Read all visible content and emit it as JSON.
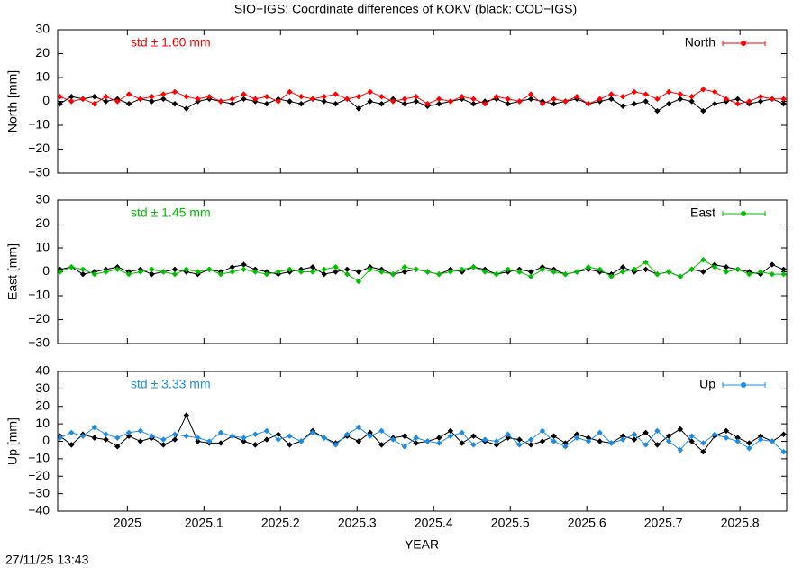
{
  "footer": "27/11/25 13:43",
  "chart_data": [
    {
      "type": "line",
      "title": "SIO−IGS: Coordinate differences of KOKV (black: COD−IGS)",
      "ylabel": "North [mm]",
      "annotation": "std ± 1.60 mm",
      "legend": "upper right",
      "xlim": [
        2024.909,
        2025.861
      ],
      "ylim": [
        -30,
        30
      ],
      "yticks": [
        {
          "value": -30,
          "label": "−30"
        },
        {
          "value": -20,
          "label": "−20"
        },
        {
          "value": -10,
          "label": "−10"
        },
        0,
        10,
        20,
        30
      ],
      "x": [
        2024.912,
        2024.927,
        2024.942,
        2024.957,
        2024.972,
        2024.987,
        2025.002,
        2025.017,
        2025.032,
        2025.047,
        2025.062,
        2025.077,
        2025.092,
        2025.107,
        2025.122,
        2025.137,
        2025.152,
        2025.167,
        2025.182,
        2025.197,
        2025.212,
        2025.227,
        2025.242,
        2025.257,
        2025.272,
        2025.287,
        2025.302,
        2025.317,
        2025.332,
        2025.347,
        2025.362,
        2025.377,
        2025.392,
        2025.407,
        2025.422,
        2025.437,
        2025.452,
        2025.467,
        2025.482,
        2025.497,
        2025.512,
        2025.527,
        2025.542,
        2025.557,
        2025.572,
        2025.587,
        2025.602,
        2025.617,
        2025.632,
        2025.647,
        2025.662,
        2025.677,
        2025.692,
        2025.707,
        2025.722,
        2025.737,
        2025.752,
        2025.767,
        2025.782,
        2025.797,
        2025.812,
        2025.827,
        2025.842,
        2025.857
      ],
      "series": [
        {
          "color": "#000000",
          "values": [
            -1,
            2,
            1,
            2,
            0,
            1,
            -1,
            1,
            0,
            1,
            -1,
            -3,
            0,
            1,
            0,
            -1,
            1,
            0,
            -1,
            1,
            0,
            -1,
            1,
            0,
            -1,
            1,
            -3,
            0,
            -1,
            1,
            -1,
            0,
            -2,
            -1,
            0,
            1,
            -1,
            0,
            1,
            -1,
            0,
            1,
            0,
            -1,
            0,
            1,
            -1,
            0,
            1,
            -2,
            -1,
            0,
            -4,
            -1,
            1,
            0,
            -4,
            -1,
            0,
            1,
            -1,
            0,
            1,
            -1
          ]
        },
        {
          "name": "North",
          "color": "#ff0000",
          "values": [
            2,
            0,
            1,
            -1,
            2,
            0,
            3,
            1,
            2,
            3,
            4,
            2,
            1,
            2,
            0,
            1,
            3,
            1,
            2,
            0,
            4,
            2,
            1,
            2,
            3,
            1,
            2,
            4,
            2,
            0,
            1,
            2,
            -1,
            1,
            0,
            2,
            1,
            -1,
            2,
            1,
            0,
            3,
            -1,
            1,
            0,
            2,
            -1,
            1,
            3,
            2,
            4,
            3,
            1,
            4,
            3,
            2,
            5,
            4,
            1,
            -1,
            0,
            2,
            1,
            1
          ]
        }
      ]
    },
    {
      "type": "line",
      "ylabel": "East [mm]",
      "annotation": "std ± 1.45 mm",
      "legend": "upper right",
      "xlim": [
        2024.909,
        2025.861
      ],
      "ylim": [
        -30,
        30
      ],
      "yticks": [
        {
          "value": -30,
          "label": "−30"
        },
        {
          "value": -20,
          "label": "−20"
        },
        {
          "value": -10,
          "label": "−10"
        },
        0,
        10,
        20,
        30
      ],
      "x": [
        2024.912,
        2024.927,
        2024.942,
        2024.957,
        2024.972,
        2024.987,
        2025.002,
        2025.017,
        2025.032,
        2025.047,
        2025.062,
        2025.077,
        2025.092,
        2025.107,
        2025.122,
        2025.137,
        2025.152,
        2025.167,
        2025.182,
        2025.197,
        2025.212,
        2025.227,
        2025.242,
        2025.257,
        2025.272,
        2025.287,
        2025.302,
        2025.317,
        2025.332,
        2025.347,
        2025.362,
        2025.377,
        2025.392,
        2025.407,
        2025.422,
        2025.437,
        2025.452,
        2025.467,
        2025.482,
        2025.497,
        2025.512,
        2025.527,
        2025.542,
        2025.557,
        2025.572,
        2025.587,
        2025.602,
        2025.617,
        2025.632,
        2025.647,
        2025.662,
        2025.677,
        2025.692,
        2025.707,
        2025.722,
        2025.737,
        2025.752,
        2025.767,
        2025.782,
        2025.797,
        2025.812,
        2025.827,
        2025.842,
        2025.857
      ],
      "series": [
        {
          "color": "#000000",
          "values": [
            1,
            2,
            -1,
            0,
            1,
            2,
            0,
            1,
            -1,
            0,
            1,
            0,
            -1,
            1,
            0,
            2,
            3,
            1,
            0,
            -1,
            0,
            1,
            2,
            -1,
            0,
            1,
            0,
            2,
            1,
            -1,
            0,
            1,
            0,
            -1,
            1,
            0,
            2,
            1,
            -1,
            0,
            1,
            0,
            2,
            1,
            -1,
            0,
            1,
            0,
            -1,
            2,
            0,
            1,
            -1,
            0,
            -2,
            1,
            0,
            3,
            2,
            1,
            0,
            -1,
            3,
            1
          ]
        },
        {
          "name": "East",
          "color": "#00c000",
          "values": [
            0,
            2,
            1,
            -1,
            0,
            1,
            -1,
            0,
            1,
            0,
            -1,
            1,
            0,
            1,
            -1,
            0,
            1,
            0,
            -1,
            0,
            1,
            0,
            0,
            1,
            2,
            -1,
            -4,
            1,
            0,
            -1,
            2,
            1,
            0,
            -1,
            0,
            1,
            2,
            0,
            -1,
            1,
            0,
            -2,
            1,
            0,
            -1,
            0,
            2,
            1,
            -2,
            0,
            1,
            4,
            -1,
            0,
            -2,
            1,
            5,
            2,
            0,
            1,
            -1,
            0,
            -1,
            -1
          ]
        }
      ]
    },
    {
      "type": "line",
      "ylabel": "Up [mm]",
      "xlabel": "YEAR",
      "annotation": "std ± 3.33 mm",
      "legend": "upper right",
      "xlim": [
        2024.909,
        2025.861
      ],
      "ylim": [
        -40,
        40
      ],
      "xticks": [
        2025,
        2025.1,
        2025.2,
        2025.3,
        2025.4,
        2025.5,
        2025.6,
        2025.7,
        2025.8
      ],
      "yticks": [
        {
          "value": -40,
          "label": "−40"
        },
        {
          "value": -30,
          "label": "−30"
        },
        {
          "value": -20,
          "label": "−20"
        },
        {
          "value": -10,
          "label": "−10"
        },
        0,
        10,
        20,
        30,
        40
      ],
      "x": [
        2024.912,
        2024.927,
        2024.942,
        2024.957,
        2024.972,
        2024.987,
        2025.002,
        2025.017,
        2025.032,
        2025.047,
        2025.062,
        2025.077,
        2025.092,
        2025.107,
        2025.122,
        2025.137,
        2025.152,
        2025.167,
        2025.182,
        2025.197,
        2025.212,
        2025.227,
        2025.242,
        2025.257,
        2025.272,
        2025.287,
        2025.302,
        2025.317,
        2025.332,
        2025.347,
        2025.362,
        2025.377,
        2025.392,
        2025.407,
        2025.422,
        2025.437,
        2025.452,
        2025.467,
        2025.482,
        2025.497,
        2025.512,
        2025.527,
        2025.542,
        2025.557,
        2025.572,
        2025.587,
        2025.602,
        2025.617,
        2025.632,
        2025.647,
        2025.662,
        2025.677,
        2025.692,
        2025.707,
        2025.722,
        2025.737,
        2025.752,
        2025.767,
        2025.782,
        2025.797,
        2025.812,
        2025.827,
        2025.842,
        2025.857
      ],
      "series": [
        {
          "color": "#000000",
          "values": [
            3,
            -2,
            4,
            2,
            1,
            -3,
            3,
            0,
            2,
            -2,
            1,
            15,
            0,
            -1,
            -1,
            3,
            0,
            -2,
            1,
            4,
            -2,
            0,
            6,
            2,
            -1,
            3,
            0,
            5,
            -2,
            2,
            3,
            -1,
            0,
            2,
            6,
            -1,
            3,
            0,
            -2,
            2,
            1,
            -2,
            0,
            3,
            -1,
            4,
            2,
            0,
            -1,
            3,
            1,
            5,
            -2,
            3,
            7,
            0,
            -6,
            3,
            6,
            2,
            -1,
            3,
            0,
            4
          ]
        },
        {
          "name": "Up",
          "color": "#1e8ce6",
          "values": [
            2,
            5,
            3,
            8,
            4,
            2,
            5,
            6,
            3,
            1,
            4,
            3,
            2,
            0,
            5,
            3,
            2,
            4,
            6,
            1,
            3,
            0,
            5,
            2,
            -2,
            4,
            8,
            3,
            6,
            1,
            -3,
            2,
            0,
            -1,
            3,
            5,
            -2,
            1,
            0,
            4,
            -2,
            1,
            6,
            0,
            -3,
            2,
            0,
            5,
            -1,
            1,
            4,
            -2,
            6,
            0,
            -5,
            3,
            -1,
            4,
            2,
            0,
            -4,
            1,
            0,
            -6
          ]
        }
      ]
    }
  ]
}
